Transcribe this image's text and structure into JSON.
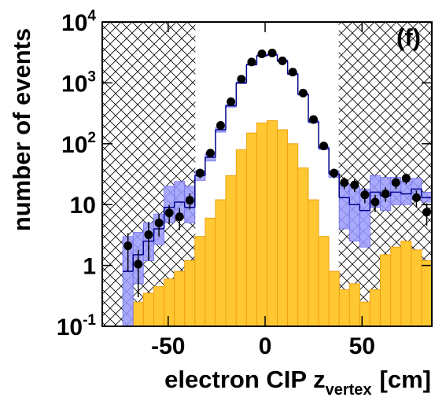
{
  "chart_data": {
    "type": "histogram",
    "annotation": "(f)",
    "y_label": "number of events",
    "x_label": {
      "main": "electron CIP z",
      "subscript": "vertex",
      "unit": "[cm]"
    },
    "xlim": [
      -84,
      86
    ],
    "xticks": [
      -50,
      0,
      50
    ],
    "ylim": [
      0.1,
      10000
    ],
    "ylog": true,
    "yticks": [
      {
        "value": 0.1,
        "label": "10",
        "exponent": "-1"
      },
      1,
      10,
      {
        "value": 100,
        "label": "10",
        "exponent": "2"
      },
      {
        "value": 1000,
        "label": "10",
        "exponent": "3"
      },
      {
        "value": 10000,
        "label": "10",
        "exponent": "4"
      }
    ],
    "excluded_regions": [
      [
        -84,
        -36
      ],
      [
        38,
        86
      ]
    ],
    "bins": [
      -84,
      -78.7,
      -73.4,
      -68.1,
      -62.8,
      -57.4,
      -52.1,
      -46.8,
      -41.5,
      -36.2,
      -30.9,
      -25.6,
      -20.3,
      -14.9,
      -9.6,
      -4.3,
      1.0,
      6.3,
      11.6,
      16.9,
      22.3,
      27.6,
      32.9,
      38.2,
      43.5,
      48.8,
      54.1,
      59.4,
      64.8,
      70.1,
      75.4,
      80.7,
      86.0
    ],
    "background": {
      "color": "#ffc832",
      "edge": "#f0a010",
      "values": [
        null,
        null,
        null,
        0.25,
        0.35,
        0.45,
        0.6,
        0.8,
        1.2,
        3,
        6,
        12,
        30,
        80,
        150,
        220,
        240,
        170,
        100,
        40,
        12,
        3,
        0.8,
        0.4,
        0.5,
        0.25,
        0.4,
        1.5,
        2,
        2.5,
        1.8,
        1.2
      ]
    },
    "mc": {
      "color": "#00008b",
      "band_color": "#9a9aff",
      "values": [
        null,
        null,
        0.8,
        1.5,
        2.5,
        4,
        9,
        11,
        9,
        30,
        60,
        170,
        420,
        1000,
        2000,
        2800,
        2900,
        2300,
        1400,
        650,
        230,
        85,
        32,
        13,
        10,
        8,
        16,
        14,
        16,
        15,
        18,
        13
      ],
      "band_low": [
        null,
        null,
        0.1,
        0.5,
        1.2,
        2.2,
        5,
        6,
        5,
        25,
        52,
        155,
        400,
        970,
        1950,
        2720,
        2820,
        2230,
        1360,
        630,
        220,
        80,
        28,
        4,
        2.5,
        2,
        9,
        8,
        10,
        10,
        12,
        11
      ],
      "band_high": [
        null,
        null,
        3,
        3.5,
        5,
        7,
        20,
        24,
        20,
        36,
        70,
        185,
        440,
        1030,
        2050,
        2880,
        2980,
        2370,
        1440,
        670,
        240,
        90,
        36,
        22,
        20,
        18,
        30,
        28,
        28,
        24,
        27,
        16
      ]
    },
    "data": {
      "color": "#000000",
      "values": [
        null,
        null,
        2.1,
        1.05,
        3.2,
        5,
        7.3,
        6.3,
        11.8,
        33,
        70,
        200,
        490,
        1150,
        2200,
        3000,
        3100,
        2300,
        1500,
        680,
        250,
        92,
        33,
        23,
        21,
        14.5,
        11,
        15,
        23,
        27,
        13,
        7.5
      ],
      "errors": [
        null,
        null,
        1.3,
        0.75,
        2,
        2,
        2.5,
        2.5,
        3.5,
        6,
        9,
        15,
        23,
        35,
        48,
        56,
        57,
        48,
        40,
        27,
        16,
        10,
        6,
        5,
        5,
        4,
        3.5,
        4,
        5,
        5.5,
        4,
        3
      ]
    }
  }
}
